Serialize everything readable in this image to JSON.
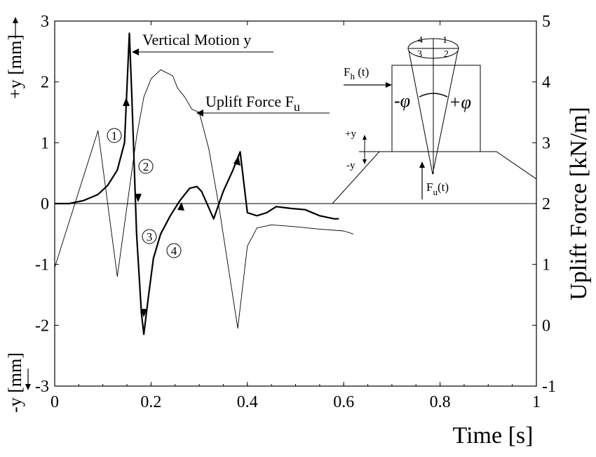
{
  "chart_data": {
    "type": "line",
    "xlabel": "Time [s]",
    "ylabel_left_top": "+y [mm]",
    "ylabel_left_bottom": "-y [mm]",
    "ylabel_right": "Uplift Force [kN/m]",
    "xlim": [
      0,
      1
    ],
    "ylim_left": [
      -3,
      3
    ],
    "ylim_right": [
      -1,
      5
    ],
    "xticks": [
      "0",
      "0.2",
      "0.4",
      "0.6",
      "0.8",
      "1"
    ],
    "yticks_left": [
      "3",
      "2",
      "1",
      "0",
      "-1",
      "-2",
      "-3"
    ],
    "yticks_right": [
      "5",
      "4",
      "3",
      "2",
      "1",
      "0",
      "-1"
    ],
    "grid": false,
    "series": [
      {
        "name": "Vertical Motion y",
        "axis": "left",
        "x": [
          0.0,
          0.03,
          0.06,
          0.09,
          0.11,
          0.13,
          0.145,
          0.155,
          0.16,
          0.17,
          0.18,
          0.185,
          0.195,
          0.205,
          0.22,
          0.24,
          0.26,
          0.28,
          0.295,
          0.305,
          0.33,
          0.35,
          0.37,
          0.385,
          0.4,
          0.42,
          0.44,
          0.46,
          0.49,
          0.52,
          0.55,
          0.58,
          0.59
        ],
        "y": [
          0.0,
          0.0,
          0.05,
          0.15,
          0.3,
          0.55,
          1.0,
          2.8,
          1.8,
          -0.5,
          -1.8,
          -2.15,
          -1.5,
          -0.9,
          -0.5,
          -0.2,
          0.05,
          0.25,
          0.28,
          0.2,
          -0.25,
          0.2,
          0.55,
          0.85,
          -0.15,
          -0.2,
          -0.15,
          -0.05,
          -0.08,
          -0.1,
          -0.2,
          -0.25,
          -0.25
        ]
      },
      {
        "name": "Uplift Force Fu",
        "axis": "right",
        "x": [
          0.0,
          0.09,
          0.13,
          0.17,
          0.185,
          0.2,
          0.22,
          0.245,
          0.255,
          0.27,
          0.285,
          0.3,
          0.32,
          0.34,
          0.38,
          0.4,
          0.42,
          0.45,
          0.5,
          0.55,
          0.6,
          0.62
        ],
        "y": [
          0.95,
          3.2,
          0.8,
          3.1,
          3.75,
          4.05,
          4.2,
          4.1,
          3.9,
          3.75,
          3.55,
          3.5,
          2.9,
          2.0,
          -0.05,
          1.3,
          1.6,
          1.65,
          1.62,
          1.58,
          1.55,
          1.5
        ]
      }
    ],
    "annotations": {
      "vertical_motion": "Vertical Motion y",
      "uplift_force": "Uplift Force F",
      "uplift_force_sub": "u",
      "step_1": "1",
      "step_2": "2",
      "step_3": "3",
      "step_4": "4"
    },
    "inset": {
      "force_h": "F",
      "force_h_sub": "h",
      "force_h_arg": " (t)",
      "force_u": "F",
      "force_u_sub": "u",
      "force_u_arg": "(t)",
      "minus_phi": "-φ",
      "plus_phi": "+φ",
      "plus_y": "+y",
      "minus_y": "-y",
      "ring_1": "1",
      "ring_2": "2",
      "ring_3": "3",
      "ring_4": "4"
    }
  }
}
